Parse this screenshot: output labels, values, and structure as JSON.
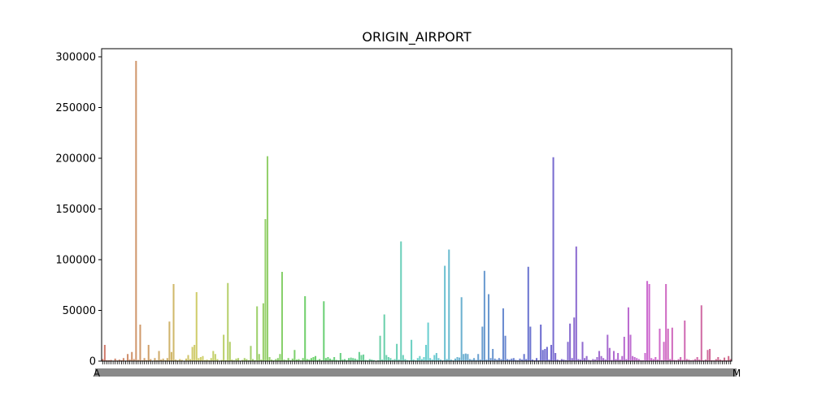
{
  "chart_data": {
    "type": "bar",
    "title": "ORIGIN_AIRPORT",
    "xlabel": "",
    "ylabel": "",
    "ylim": [
      0,
      308000
    ],
    "yticks": [
      0,
      50000,
      100000,
      150000,
      200000,
      250000,
      300000
    ],
    "ytick_labels": [
      "0",
      "50000",
      "100000",
      "150000",
      "200000",
      "250000",
      "300000"
    ],
    "x_first_label": "A",
    "x_last_label": "M",
    "grid": false,
    "values": [
      2000,
      16000,
      1000,
      800,
      1200,
      500,
      2500,
      700,
      1500,
      900,
      3000,
      600,
      7000,
      1500,
      9000,
      2000,
      296000,
      1200,
      36000,
      800,
      3000,
      1000,
      16000,
      2000,
      500,
      3000,
      800,
      10000,
      1500,
      2500,
      1000,
      3000,
      39000,
      9000,
      76000,
      1500,
      800,
      2000,
      1200,
      500,
      2500,
      6000,
      2000,
      14000,
      16000,
      68000,
      3000,
      4000,
      5000,
      1000,
      1500,
      800,
      3000,
      10000,
      7000,
      2000,
      500,
      1200,
      26000,
      1000,
      77000,
      19000,
      1500,
      800,
      2500,
      3000,
      500,
      1200,
      3000,
      2000,
      800,
      15000,
      2000,
      1000,
      54000,
      7000,
      1500,
      57000,
      140000,
      202000,
      4000,
      1500,
      800,
      2000,
      3000,
      7000,
      88000,
      1500,
      1000,
      3000,
      800,
      2500,
      11000,
      1500,
      2000,
      800,
      3000,
      64000,
      2000,
      1500,
      3000,
      4000,
      5000,
      1200,
      2000,
      1000,
      59000,
      3000,
      4000,
      2500,
      1500,
      4000,
      1200,
      800,
      8000,
      1500,
      2000,
      1000,
      3000,
      3500,
      3000,
      2500,
      1500,
      9000,
      6000,
      6500,
      1200,
      800,
      2000,
      1500,
      1000,
      500,
      800,
      25000,
      1500,
      46000,
      6000,
      4000,
      3000,
      1200,
      2000,
      17000,
      1500,
      118000,
      6000,
      2000,
      1000,
      800,
      21000,
      1500,
      800,
      3000,
      5000,
      2000,
      4000,
      16000,
      38000,
      3000,
      1500,
      6000,
      8000,
      3000,
      1500,
      800,
      94000,
      2000,
      110000,
      1500,
      800,
      2500,
      4000,
      3500,
      63000,
      7000,
      7500,
      7000,
      2000,
      1500,
      3000,
      1200,
      7000,
      1500,
      34000,
      89000,
      1500,
      66000,
      3000,
      12000,
      2500,
      1500,
      3000,
      2000,
      52000,
      25000,
      2000,
      1500,
      2500,
      3000,
      1200,
      800,
      2500,
      1500,
      7000,
      2000,
      93000,
      34000,
      1500,
      800,
      3000,
      800,
      36000,
      11000,
      12000,
      14000,
      1500,
      16000,
      201000,
      8000,
      1500,
      800,
      2000,
      1500,
      1000,
      19000,
      37000,
      3000,
      43000,
      113000,
      2000,
      1500,
      19000,
      3000,
      5000,
      1200,
      800,
      2000,
      1500,
      4000,
      10000,
      5000,
      3000,
      1500,
      26000,
      13000,
      1200,
      10000,
      2000,
      8000,
      1500,
      5000,
      24000,
      2000,
      53000,
      26000,
      5000,
      4000,
      3000,
      2000,
      1000,
      800,
      8000,
      79000,
      76000,
      3000,
      2000,
      4000,
      1500,
      32000,
      1000,
      19000,
      76000,
      32000,
      2000,
      33000,
      1200,
      800,
      2000,
      4000,
      1200,
      40000,
      2000,
      1500,
      800,
      1200,
      2000,
      4000,
      1500,
      55000,
      800,
      1500,
      11000,
      12000,
      1000,
      800,
      2000,
      4000,
      1500,
      800,
      3500,
      800,
      5000,
      2000
    ]
  }
}
